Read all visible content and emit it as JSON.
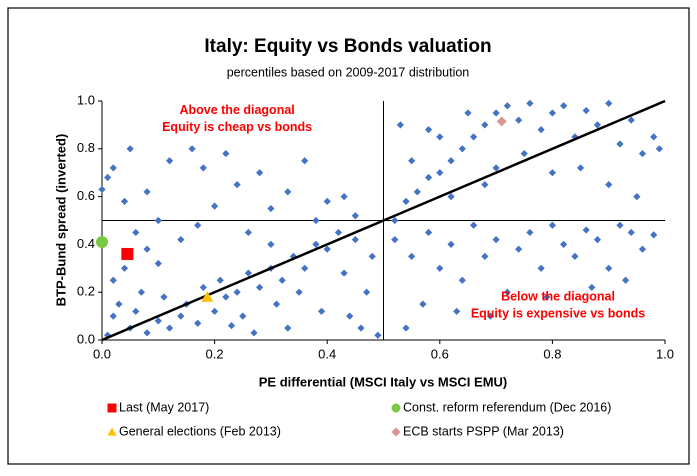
{
  "chart_data": {
    "type": "scatter",
    "title": "Italy: Equity vs Bonds valuation",
    "subtitle": "percentiles based on 2009-2017 distribution",
    "x_label": "PE differential (MSCI Italy vs MSCI EMU)",
    "y_label": "BTP-Bund spread (inverted)",
    "xlim": [
      0,
      1
    ],
    "ylim": [
      0,
      1
    ],
    "xticks": [
      {
        "value": 0,
        "label": "0.0"
      },
      0.2,
      0.4,
      0.6,
      0.8,
      {
        "value": 1,
        "label": "1.0"
      }
    ],
    "yticks": [
      {
        "value": 0,
        "label": "0.0"
      },
      0.2,
      0.4,
      0.6,
      0.8,
      {
        "value": 1,
        "label": "1.0"
      }
    ],
    "vline": 0.5,
    "hline": 0.5,
    "diagonal": true,
    "annotations": [
      {
        "lines": [
          "Above the diagonal",
          "Equity is cheap vs bonds"
        ],
        "x": 0.24,
        "y": 0.96,
        "color": "#ff0000"
      },
      {
        "lines": [
          "Below the diagonal",
          "Equity is expensive vs bonds"
        ],
        "x": 0.81,
        "y": 0.18,
        "color": "#ff0000"
      }
    ],
    "points": {
      "color": "#4472c4",
      "x": [
        0.01,
        0.02,
        0.03,
        0.05,
        0.06,
        0.08,
        0.1,
        0.11,
        0.12,
        0.14,
        0.15,
        0.17,
        0.18,
        0.2,
        0.21,
        0.22,
        0.24,
        0.25,
        0.26,
        0.28,
        0.3,
        0.31,
        0.32,
        0.34,
        0.35,
        0.36,
        0.38,
        0.39,
        0.4,
        0.42,
        0.43,
        0.45,
        0.46,
        0.48,
        0.49,
        0.47,
        0.44,
        0.33,
        0.27,
        0.23,
        0.0,
        0.01,
        0.02,
        0.04,
        0.05,
        0.08,
        0.12,
        0.16,
        0.18,
        0.22,
        0.24,
        0.28,
        0.3,
        0.33,
        0.36,
        0.38,
        0.4,
        0.43,
        0.45,
        0.2,
        0.1,
        0.06,
        0.08,
        0.14,
        0.17,
        0.26,
        0.3,
        0.02,
        0.04,
        0.1,
        0.07,
        0.52,
        0.54,
        0.56,
        0.58,
        0.6,
        0.62,
        0.64,
        0.66,
        0.68,
        0.7,
        0.72,
        0.74,
        0.76,
        0.78,
        0.8,
        0.82,
        0.84,
        0.86,
        0.88,
        0.9,
        0.92,
        0.94,
        0.96,
        0.98,
        0.99,
        0.6,
        0.55,
        0.65,
        0.7,
        0.75,
        0.8,
        0.85,
        0.9,
        0.95,
        0.58,
        0.68,
        0.62,
        0.53,
        0.52,
        0.55,
        0.58,
        0.6,
        0.62,
        0.64,
        0.66,
        0.68,
        0.7,
        0.72,
        0.74,
        0.76,
        0.78,
        0.8,
        0.82,
        0.84,
        0.86,
        0.88,
        0.9,
        0.92,
        0.94,
        0.96,
        0.98,
        0.57,
        0.63,
        0.69,
        0.54,
        0.87,
        0.93,
        0.79
      ],
      "y": [
        0.02,
        0.1,
        0.15,
        0.05,
        0.12,
        0.03,
        0.08,
        0.18,
        0.05,
        0.1,
        0.15,
        0.07,
        0.22,
        0.12,
        0.25,
        0.18,
        0.2,
        0.1,
        0.28,
        0.22,
        0.3,
        0.15,
        0.25,
        0.35,
        0.2,
        0.3,
        0.4,
        0.12,
        0.38,
        0.45,
        0.28,
        0.42,
        0.05,
        0.35,
        0.02,
        0.2,
        0.1,
        0.05,
        0.03,
        0.06,
        0.63,
        0.68,
        0.72,
        0.58,
        0.8,
        0.62,
        0.75,
        0.8,
        0.72,
        0.78,
        0.65,
        0.7,
        0.55,
        0.62,
        0.75,
        0.5,
        0.58,
        0.6,
        0.52,
        0.56,
        0.5,
        0.45,
        0.38,
        0.42,
        0.48,
        0.45,
        0.4,
        0.25,
        0.3,
        0.32,
        0.2,
        0.5,
        0.58,
        0.62,
        0.68,
        0.7,
        0.75,
        0.8,
        0.85,
        0.9,
        0.95,
        0.98,
        0.92,
        0.99,
        0.88,
        0.95,
        0.98,
        0.85,
        0.96,
        0.9,
        0.99,
        0.82,
        0.92,
        0.78,
        0.85,
        0.8,
        0.85,
        0.75,
        0.95,
        0.72,
        0.78,
        0.7,
        0.72,
        0.65,
        0.6,
        0.88,
        0.65,
        0.6,
        0.9,
        0.42,
        0.35,
        0.45,
        0.3,
        0.4,
        0.25,
        0.48,
        0.35,
        0.42,
        0.2,
        0.38,
        0.45,
        0.3,
        0.48,
        0.4,
        0.35,
        0.46,
        0.42,
        0.3,
        0.48,
        0.45,
        0.38,
        0.44,
        0.15,
        0.12,
        0.1,
        0.05,
        0.22,
        0.25,
        0.18
      ]
    },
    "series": [
      {
        "name": "Last (May 2017)",
        "color": "#ff0000",
        "marker": "square",
        "x": [
          0.045
        ],
        "y": [
          0.36
        ]
      },
      {
        "name": "Const. reform referendum (Dec 2016)",
        "color": "#7ac943",
        "marker": "circle",
        "x": [
          0.0
        ],
        "y": [
          0.41
        ]
      },
      {
        "name": "General elections (Feb 2013)",
        "color": "#ffc000",
        "marker": "triangle",
        "x": [
          0.187
        ],
        "y": [
          0.18
        ]
      },
      {
        "name": "ECB starts PSPP (Mar 2013)",
        "color": "#d99694",
        "marker": "diamond",
        "x": [
          0.71
        ],
        "y": [
          0.915
        ]
      }
    ]
  }
}
